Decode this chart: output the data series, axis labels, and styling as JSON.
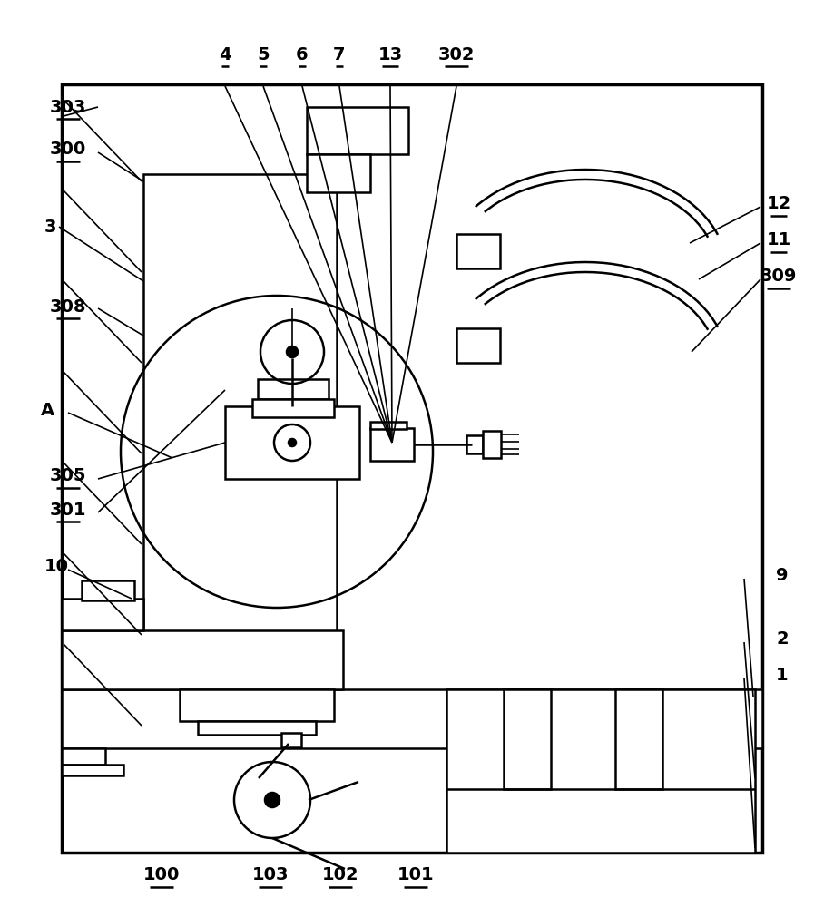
{
  "bg": "#ffffff",
  "lc": "#000000",
  "lw": 1.8,
  "lwt": 2.5,
  "lws": 1.2
}
